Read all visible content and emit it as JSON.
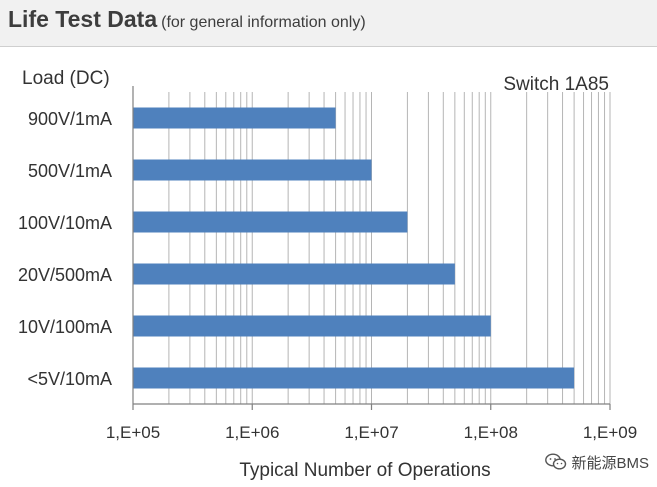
{
  "header": {
    "title": "Life Test Data",
    "subtitle": "(for general information only)"
  },
  "watermark": {
    "text": "新能源BMS",
    "icon": "wechat-icon"
  },
  "chart_data": {
    "type": "bar",
    "orientation": "horizontal",
    "y_axis_title": "Load (DC)",
    "annotation": "Switch 1A85",
    "xlabel": "Typical Number of Operations",
    "x_scale": "log",
    "xlim": [
      100000,
      1000000000
    ],
    "x_ticks": [
      "1,E+05",
      "1,E+06",
      "1,E+07",
      "1,E+08",
      "1,E+09"
    ],
    "grid": "vertical minor log gridlines",
    "categories": [
      "900V/1mA",
      "500V/1mA",
      "100V/10mA",
      "20V/500mA",
      "10V/100mA",
      "<5V/10mA"
    ],
    "values": [
      5000000,
      10000000,
      20000000,
      50000000,
      100000000,
      500000000
    ],
    "bar_color": "#4f81bd"
  }
}
